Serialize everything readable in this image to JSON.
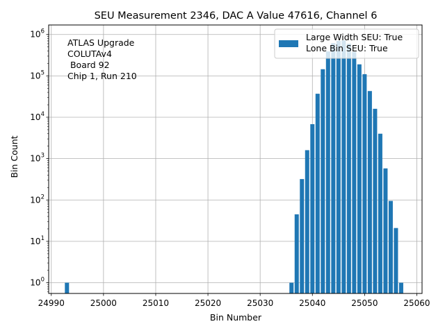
{
  "chart_data": {
    "type": "bar",
    "title": "SEU Measurement 2346, DAC A Value 47616, Channel 6",
    "xlabel": "Bin Number",
    "ylabel": "Bin Count",
    "yscale": "log",
    "xlim": [
      24989.5,
      25061
    ],
    "ylim": [
      0.55,
      1700000
    ],
    "grid": true,
    "color": "#1f77b4",
    "x_ticks": [
      24990,
      25000,
      25010,
      25020,
      25030,
      25040,
      25050,
      25060
    ],
    "y_ticks": [
      {
        "value": 1,
        "base": "10",
        "exp": "0"
      },
      {
        "value": 10,
        "base": "10",
        "exp": "1"
      },
      {
        "value": 100,
        "base": "10",
        "exp": "2"
      },
      {
        "value": 1000,
        "base": "10",
        "exp": "3"
      },
      {
        "value": 10000,
        "base": "10",
        "exp": "4"
      },
      {
        "value": 100000,
        "base": "10",
        "exp": "5"
      },
      {
        "value": 1000000,
        "base": "10",
        "exp": "6"
      }
    ],
    "bins": [
      24993,
      25036,
      25037,
      25038,
      25039,
      25040,
      25041,
      25042,
      25043,
      25044,
      25045,
      25046,
      25047,
      25048,
      25049,
      25050,
      25051,
      25052,
      25053,
      25054,
      25055,
      25056,
      25057
    ],
    "counts": [
      1,
      1,
      45,
      320,
      1600,
      6800,
      37000,
      145000,
      390000,
      620000,
      700000,
      720000,
      600000,
      380000,
      190000,
      110000,
      43000,
      16000,
      4000,
      580,
      95,
      21,
      1
    ],
    "legend": {
      "position": "top-right",
      "lines": [
        "Large Width SEU: True",
        "Lone Bin SEU: True"
      ]
    },
    "annotation": [
      "ATLAS Upgrade",
      "COLUTAv4",
      " Board 92",
      "Chip 1, Run 210"
    ]
  }
}
